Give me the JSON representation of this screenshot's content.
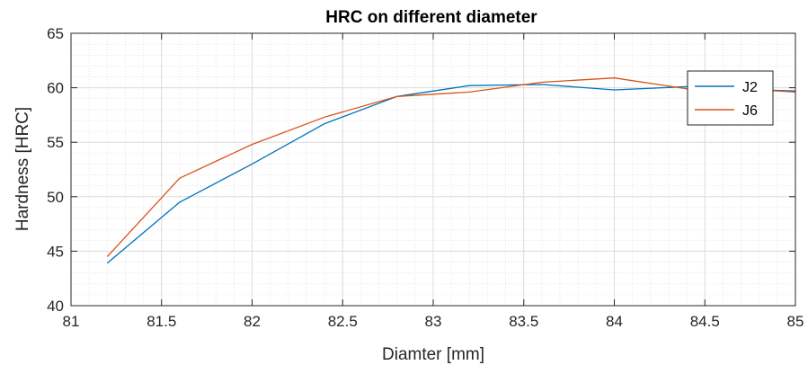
{
  "chart_data": {
    "type": "line",
    "title": "HRC on different diameter",
    "xlabel": "Diamter [mm]",
    "ylabel": "Hardness [HRC]",
    "xlim": [
      81,
      85
    ],
    "ylim": [
      40,
      65
    ],
    "xticks": [
      81,
      81.5,
      82,
      82.5,
      83,
      83.5,
      84,
      84.5,
      85
    ],
    "yticks": [
      40,
      45,
      50,
      55,
      60,
      65
    ],
    "grid": true,
    "minor_grid": true,
    "legend_position": "top-right",
    "series": [
      {
        "name": "J2",
        "color": "#0072BD",
        "x": [
          81.2,
          81.6,
          82.0,
          82.4,
          82.8,
          83.2,
          83.6,
          84.0,
          84.4,
          84.8,
          85.0
        ],
        "y": [
          43.9,
          49.5,
          53.0,
          56.7,
          59.2,
          60.2,
          60.3,
          59.8,
          60.1,
          59.8,
          59.7
        ]
      },
      {
        "name": "J6",
        "color": "#D95319",
        "x": [
          81.2,
          81.6,
          82.0,
          82.4,
          82.8,
          83.2,
          83.6,
          84.0,
          84.4,
          84.8,
          85.0
        ],
        "y": [
          44.5,
          51.7,
          54.8,
          57.3,
          59.2,
          59.6,
          60.5,
          60.9,
          59.9,
          59.8,
          59.6
        ]
      }
    ]
  }
}
